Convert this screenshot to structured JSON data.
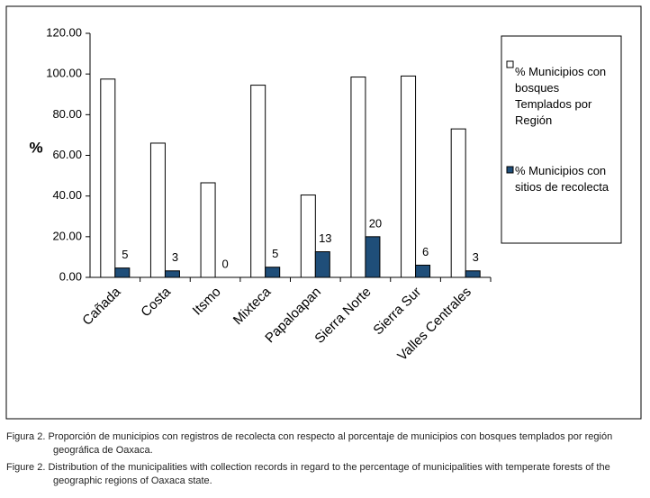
{
  "chart_data": {
    "type": "bar",
    "y_label": "%",
    "categories": [
      "Cañada",
      "Costa",
      "Itsmo",
      "Mixteca",
      "Papaloapan",
      "Sierra Norte",
      "Sierra Sur",
      "Valles Centrales"
    ],
    "series": [
      {
        "name": "% Municipios con bosques Templados por Región",
        "color": "#ffffff",
        "values": [
          97.5,
          66,
          46.5,
          94.5,
          40.5,
          98.5,
          99,
          73
        ]
      },
      {
        "name": "% Municipios con sitios de recolecta",
        "color": "#1f4e79",
        "values": [
          4.6,
          3.2,
          0,
          5,
          12.6,
          20,
          6,
          3.2
        ],
        "value_labels": [
          "5",
          "3",
          "0",
          "5",
          "13",
          "20",
          "6",
          "3"
        ]
      }
    ],
    "ylim": [
      0,
      120
    ],
    "yticks": [
      {
        "value": 0,
        "label": "0.00"
      },
      {
        "value": 20,
        "label": "20.00"
      },
      {
        "value": 40,
        "label": "40.00"
      },
      {
        "value": 60,
        "label": "60.00"
      },
      {
        "value": 80,
        "label": "80.00"
      },
      {
        "value": 100,
        "label": "100.00"
      },
      {
        "value": 120,
        "label": "120.00"
      }
    ]
  },
  "captions": [
    "Figura 2. Proporción de municipios con registros de recolecta con respecto al porcentaje de municipios con bosques templados por región geográfica de Oaxaca.",
    "Figure 2. Distribution of the municipalities with collection records in regard to the percentage of municipalities with temperate forests of the geographic regions of Oaxaca state."
  ]
}
